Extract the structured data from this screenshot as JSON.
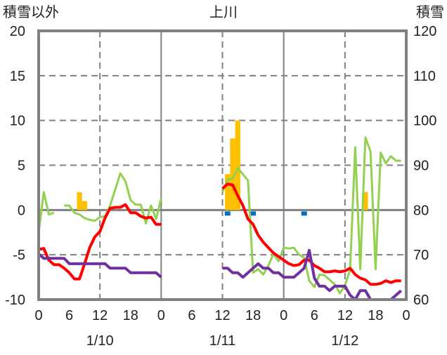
{
  "chart_data": {
    "type": "line",
    "title": "上川",
    "ylabel_left": "積雪以外",
    "ylabel_right": "積雪",
    "ylim_left": [
      -10,
      20
    ],
    "ylim_right": [
      60,
      120
    ],
    "yticks_left": [
      "-10",
      "-5",
      "0",
      "5",
      "10",
      "15",
      "20"
    ],
    "yticks_right": [
      "60",
      "70",
      "80",
      "90",
      "100",
      "110",
      "120"
    ],
    "xlim_hours": [
      0,
      72
    ],
    "xtick_labels": [
      "0",
      "6",
      "12",
      "18",
      "0",
      "6",
      "12",
      "18",
      "0",
      "6",
      "12",
      "18",
      "0"
    ],
    "date_labels": [
      "1/10",
      "1/11",
      "1/12"
    ],
    "grid": true,
    "series": [
      {
        "name": "green",
        "type": "line",
        "color": "#92d050",
        "values": [
          -2.5,
          2.0,
          -0.5,
          -0.3,
          null,
          0.5,
          0.5,
          -0.3,
          -0.5,
          -0.9,
          -1.1,
          -1.2,
          -0.8,
          -0.7,
          0.5,
          2.3,
          4.1,
          3.2,
          1.1,
          0.6,
          0.6,
          -1.5,
          0.5,
          -1.0,
          1.3,
          null,
          null,
          null,
          null,
          null,
          null,
          null,
          null,
          null,
          null,
          null,
          2.0,
          3.4,
          3.5,
          4.7,
          4.0,
          3.3,
          -7.0,
          -6.6,
          -7.2,
          -6.2,
          -4.9,
          -5.7,
          -4.2,
          -4.3,
          -4.2,
          -5.0,
          -5.3,
          -7.9,
          -8.6,
          -7.2,
          -7.3,
          -7.8,
          -8.3,
          -9.3,
          -8.4,
          -6.7,
          7.0,
          -6.6,
          8.1,
          6.5,
          -6.6,
          6.4,
          5.2,
          6.0,
          5.5,
          5.5
        ]
      },
      {
        "name": "red",
        "type": "line",
        "color": "#ff0000",
        "values": [
          -4.4,
          -4.3,
          -5.6,
          -6.1,
          -6.1,
          -6.5,
          -7.0,
          -7.7,
          -7.7,
          -6.0,
          -4.2,
          -3.0,
          -2.4,
          -0.9,
          0.2,
          0.3,
          0.3,
          0.6,
          -0.3,
          -0.3,
          -0.7,
          -0.9,
          -0.8,
          -1.6,
          -1.6,
          null,
          null,
          null,
          null,
          null,
          null,
          null,
          null,
          null,
          null,
          null,
          2.4,
          2.9,
          2.8,
          1.6,
          0.5,
          -1.0,
          -1.6,
          -2.8,
          -3.6,
          -4.2,
          -4.8,
          -5.2,
          -5.6,
          -6.0,
          -6.2,
          -6.1,
          -5.6,
          -5.6,
          -6.2,
          -6.5,
          -6.9,
          -6.9,
          -6.8,
          -6.9,
          -6.8,
          -6.5,
          -7.2,
          -7.6,
          -7.8,
          -8.3,
          -8.3,
          -8.2,
          -7.9,
          -8.1,
          -7.9,
          -7.9
        ]
      },
      {
        "name": "purple",
        "type": "line",
        "color": "#7030a0",
        "values": [
          -4.9,
          -5.4,
          -5.4,
          -5.4,
          -5.4,
          -5.4,
          -6.0,
          -6.0,
          -6.0,
          -6.0,
          -6.0,
          -6.0,
          -6.0,
          -6.0,
          -6.5,
          -6.5,
          -6.5,
          -6.5,
          -7.0,
          -7.0,
          -7.0,
          -7.0,
          -7.0,
          -7.0,
          -7.5,
          null,
          null,
          null,
          null,
          null,
          null,
          null,
          null,
          null,
          null,
          null,
          -6.5,
          -6.5,
          -7.0,
          -7.0,
          -7.5,
          -7.0,
          -6.5,
          -6.0,
          -6.5,
          -6.5,
          -7.0,
          -7.0,
          -7.5,
          -7.5,
          -7.5,
          -7.0,
          -6.5,
          -4.5,
          -7.6,
          -8.5,
          -8.5,
          -9.0,
          -8.5,
          -8.5,
          -8.5,
          -9.5,
          -10,
          -9.0,
          -9.0,
          -10,
          -10,
          -10,
          -10,
          -10,
          -9.5,
          -9.0
        ]
      },
      {
        "name": "orange",
        "type": "bar",
        "color": "#ffc000",
        "points": [
          [
            8,
            2.0
          ],
          [
            9,
            1.0
          ],
          [
            37,
            4.0
          ],
          [
            38,
            8.0
          ],
          [
            39,
            10.0
          ],
          [
            64,
            2.0
          ]
        ]
      },
      {
        "name": "blue",
        "type": "marker",
        "color": "#0070c0",
        "points": [
          [
            37,
            -0.3
          ],
          [
            42,
            -0.3
          ],
          [
            52,
            -0.3
          ]
        ]
      }
    ]
  }
}
